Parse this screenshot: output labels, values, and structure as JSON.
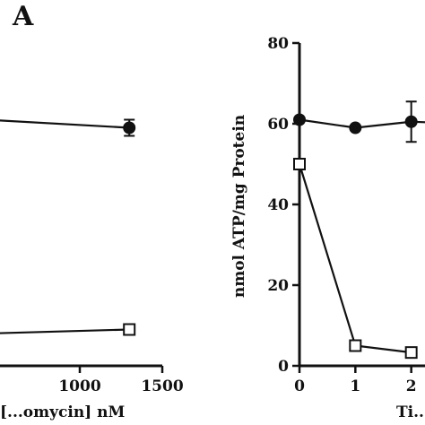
{
  "panel_label": "A",
  "chart_data": [
    {
      "type": "line",
      "xlabel": "[...omycin] nM",
      "ylabel": "",
      "xlim": [
        0,
        1500
      ],
      "ylim": [
        0,
        80
      ],
      "x_ticks": [
        1000,
        1500
      ],
      "x_tick_labels": [
        "1000",
        "1500"
      ],
      "y_ticks": [],
      "series": [
        {
          "marker": "filled-circle",
          "x": [
            0,
            1300
          ],
          "y": [
            62,
            59
          ],
          "yerr": [
            0,
            2
          ]
        },
        {
          "marker": "open-square",
          "x": [
            0,
            1300
          ],
          "y": [
            7.5,
            9
          ],
          "yerr": [
            0,
            0
          ]
        }
      ],
      "grid": false
    },
    {
      "type": "line",
      "xlabel": "Ti...",
      "ylabel": "nmol ATP/mg Protein",
      "xlim": [
        0,
        3
      ],
      "ylim": [
        0,
        80
      ],
      "x_ticks": [
        0,
        1,
        2
      ],
      "x_tick_labels": [
        "0",
        "1",
        "2"
      ],
      "y_ticks": [
        0,
        20,
        40,
        60,
        80
      ],
      "y_tick_labels": [
        "0",
        "20",
        "40",
        "60",
        "80"
      ],
      "series": [
        {
          "marker": "filled-circle",
          "x": [
            0,
            1,
            2,
            3
          ],
          "y": [
            61,
            59,
            60.5,
            60
          ],
          "yerr": [
            0,
            0,
            5,
            0
          ]
        },
        {
          "marker": "open-square",
          "x": [
            0,
            1,
            2
          ],
          "y": [
            50,
            5,
            3.3
          ],
          "yerr": [
            0,
            0,
            0
          ]
        }
      ],
      "grid": false
    }
  ]
}
